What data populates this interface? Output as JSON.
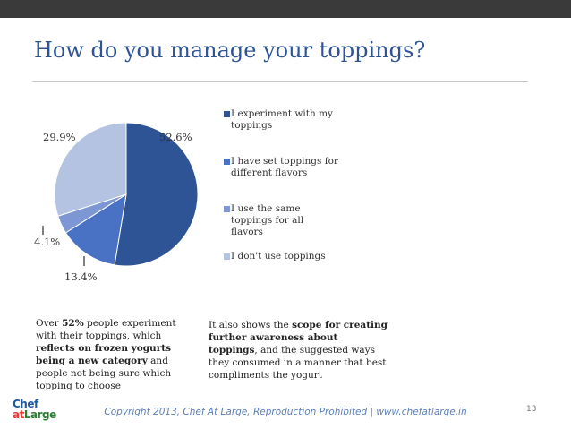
{
  "slide": {
    "title": "How do you manage your toppings?",
    "page_number": "13",
    "footer": "Copyright 2013, Chef At Large, Reproduction Prohibited | www.chefatlarge.in",
    "logo": {
      "top": "Chef",
      "bottom_a": "at",
      "bottom_b": "Large"
    }
  },
  "chart_data": {
    "type": "pie",
    "categories": [
      "I experiment with my toppings",
      "I have set toppings for different flavors",
      "I use the same toppings for all flavors",
      "I don't use toppings"
    ],
    "values": [
      52.6,
      13.4,
      4.1,
      29.9
    ],
    "labels": [
      "52.6%",
      "13.4%",
      "4.1%",
      "29.9%"
    ],
    "colors": [
      "#2e5495",
      "#4a72c4",
      "#7d97d4",
      "#b4c3e2"
    ],
    "legend_position": "right"
  },
  "notes": {
    "left": [
      {
        "text": "Over ",
        "bold": false
      },
      {
        "text": "52%",
        "bold": true
      },
      {
        "text": " people experiment with their toppings, which ",
        "bold": false
      },
      {
        "text": "reflects on frozen yogurts being a new category",
        "bold": true
      },
      {
        "text": " and people not being sure which topping to choose",
        "bold": false
      }
    ],
    "right": [
      {
        "text": "It also shows the ",
        "bold": false
      },
      {
        "text": "scope for creating further awareness about toppings",
        "bold": true
      },
      {
        "text": ", and the suggested ways they consumed in a manner that best compliments the yogurt",
        "bold": false
      }
    ]
  }
}
